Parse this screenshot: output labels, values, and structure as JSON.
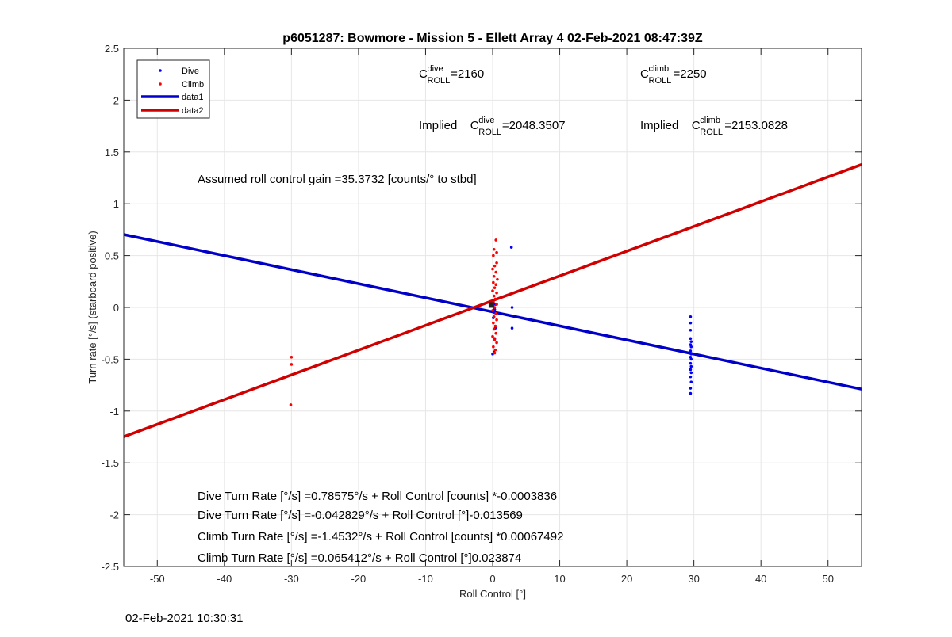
{
  "chart_data": {
    "type": "scatter",
    "title": "p6051287: Bowmore - Mission 5 - Ellett Array 4 02-Feb-2021 08:47:39Z",
    "xlabel": "Roll Control [°]",
    "ylabel": "Turn rate [°/s] (starboard positive)",
    "xlim": [
      -55,
      55
    ],
    "ylim": [
      -2.5,
      2.5
    ],
    "xticks": [
      -50,
      -40,
      -30,
      -20,
      -10,
      0,
      10,
      20,
      30,
      40,
      50
    ],
    "yticks": [
      -2.5,
      -2,
      -1.5,
      -1,
      -0.5,
      0,
      0.5,
      1,
      1.5,
      2,
      2.5
    ],
    "ytick_labels": [
      "-2.5",
      "-2",
      "-1.5",
      "-1",
      "-0.5",
      "0",
      "0.5",
      "1",
      "1.5",
      "2",
      "2.5"
    ],
    "grid": true,
    "legend_position": "top-left",
    "series": [
      {
        "name": "Dive",
        "kind": "scatter",
        "color": "#0000ff",
        "points": [
          [
            0.0,
            -0.45
          ],
          [
            0.2,
            -0.43
          ],
          [
            0.3,
            -0.3
          ],
          [
            0.4,
            -0.2
          ],
          [
            0.1,
            -0.1
          ],
          [
            0.3,
            -0.05
          ],
          [
            0.2,
            0.0
          ],
          [
            0.4,
            0.03
          ],
          [
            0.1,
            0.05
          ],
          [
            0.3,
            -0.02
          ],
          [
            2.8,
            0.58
          ],
          [
            2.9,
            0.0
          ],
          [
            2.9,
            -0.2
          ],
          [
            29.5,
            -0.09
          ],
          [
            29.5,
            -0.15
          ],
          [
            29.5,
            -0.22
          ],
          [
            29.5,
            -0.3
          ],
          [
            29.6,
            -0.33
          ],
          [
            29.5,
            -0.36
          ],
          [
            29.6,
            -0.38
          ],
          [
            29.5,
            -0.42
          ],
          [
            29.6,
            -0.45
          ],
          [
            29.5,
            -0.48
          ],
          [
            29.6,
            -0.5
          ],
          [
            29.5,
            -0.54
          ],
          [
            29.6,
            -0.57
          ],
          [
            29.5,
            -0.6
          ],
          [
            29.6,
            -0.63
          ],
          [
            29.5,
            -0.67
          ],
          [
            29.6,
            -0.72
          ],
          [
            29.5,
            -0.78
          ],
          [
            29.5,
            -0.83
          ]
        ]
      },
      {
        "name": "Climb",
        "kind": "scatter",
        "color": "#ff0000",
        "points": [
          [
            -30.0,
            -0.48
          ],
          [
            -30.0,
            -0.55
          ],
          [
            -30.1,
            -0.94
          ],
          [
            0.5,
            0.65
          ],
          [
            0.2,
            0.56
          ],
          [
            0.6,
            0.53
          ],
          [
            0.1,
            0.5
          ],
          [
            0.6,
            0.43
          ],
          [
            0.3,
            0.4
          ],
          [
            0.0,
            0.37
          ],
          [
            0.5,
            0.34
          ],
          [
            0.2,
            0.3
          ],
          [
            0.7,
            0.27
          ],
          [
            0.1,
            0.24
          ],
          [
            0.5,
            0.22
          ],
          [
            0.3,
            0.19
          ],
          [
            0.0,
            0.16
          ],
          [
            0.6,
            0.14
          ],
          [
            0.2,
            0.11
          ],
          [
            0.4,
            0.08
          ],
          [
            0.1,
            0.05
          ],
          [
            0.6,
            0.03
          ],
          [
            0.3,
            0.0
          ],
          [
            0.0,
            -0.03
          ],
          [
            0.5,
            -0.06
          ],
          [
            0.2,
            -0.09
          ],
          [
            0.6,
            -0.12
          ],
          [
            0.1,
            -0.15
          ],
          [
            0.4,
            -0.18
          ],
          [
            0.2,
            -0.21
          ],
          [
            0.5,
            -0.25
          ],
          [
            0.0,
            -0.28
          ],
          [
            0.3,
            -0.31
          ],
          [
            0.6,
            -0.34
          ],
          [
            0.1,
            -0.38
          ],
          [
            0.4,
            -0.41
          ],
          [
            0.3,
            -0.44
          ]
        ]
      },
      {
        "name": "data1",
        "kind": "line",
        "color": "#0000c8",
        "intercept": -0.042829,
        "slope": -0.013569
      },
      {
        "name": "data2",
        "kind": "line",
        "color": "#d00000",
        "intercept": 0.065412,
        "slope": 0.023874
      }
    ],
    "legend": [
      "Dive",
      "Climb",
      "data1",
      "data2"
    ],
    "annotations": [
      {
        "base": "C",
        "sup": "dive",
        "sub": "ROLL",
        "value": " =2160"
      },
      {
        "base": "C",
        "sup": "climb",
        "sub": "ROLL",
        "value": " =2250"
      },
      {
        "prefix": "Implied ",
        "base": "C",
        "sup": "dive",
        "sub": "ROLL",
        "value": " =2048.3507"
      },
      {
        "prefix": "Implied ",
        "base": "C",
        "sup": "climb",
        "sub": "ROLL",
        "value": " =2153.0828"
      }
    ],
    "gain_text": "Assumed roll control gain =35.3732 [counts/° to stbd]",
    "equations": [
      "Dive Turn Rate [°/s] =0.78575°/s + Roll Control [counts] *-0.0003836",
      "Dive Turn Rate [°/s] =-0.042829°/s + Roll Control [°]-0.013569",
      "Climb Turn Rate [°/s] =-1.4532°/s + Roll Control [counts] *0.00067492",
      "Climb Turn Rate [°/s] =0.065412°/s + Roll Control [°]0.023874"
    ]
  },
  "footer": {
    "timestamp": "02-Feb-2021 10:30:31"
  }
}
